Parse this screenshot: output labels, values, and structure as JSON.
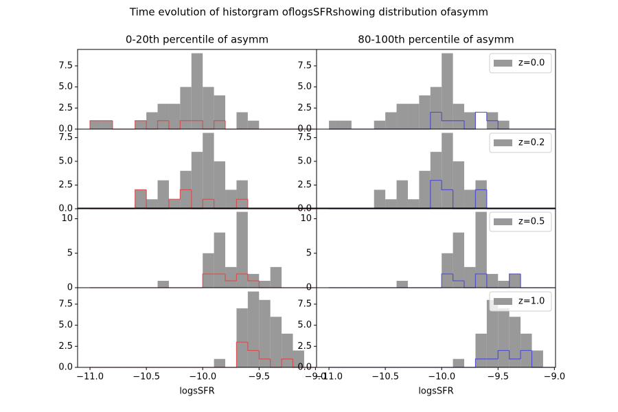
{
  "title": "Time evolution of historgram oflogsSFRshowing distribution ofasymm",
  "chart_data": [
    {
      "type": "histogram",
      "title": "0-20th percentile of asymm",
      "bins": [
        -11,
        -10.9,
        -10.8,
        -10.7,
        -10.6,
        -10.5,
        -10.4,
        -10.3,
        -10.2,
        -10.1,
        -10,
        -9.9,
        -9.8,
        -9.7,
        -9.6,
        -9.5,
        -9.4,
        -9.3,
        -9.2,
        -9.1,
        -9
      ],
      "xlim": [
        -11.11,
        -8.99
      ],
      "ylim": [
        0,
        9.45
      ],
      "yticks": [
        {
          "value": 0,
          "label": "0.0"
        },
        {
          "value": 2.5,
          "label": "2.5"
        },
        {
          "value": 5,
          "label": "5.0"
        },
        {
          "value": 7.5,
          "label": "7.5"
        }
      ],
      "series": [
        {
          "color": "#999999",
          "histtype": "bar",
          "values": [
            1,
            1,
            0,
            0,
            1,
            2,
            3,
            3,
            5,
            9,
            5,
            4,
            0,
            2,
            1,
            0,
            0,
            0,
            0,
            0
          ]
        },
        {
          "color": "#d94848",
          "histtype": "step",
          "values": [
            1,
            1,
            0,
            0,
            1,
            0,
            1,
            0,
            1,
            1,
            0,
            1,
            0,
            0,
            0,
            0,
            0,
            0,
            0,
            0
          ]
        }
      ]
    },
    {
      "type": "histogram",
      "title": "80-100th percentile of asymm",
      "bins": [
        -11,
        -10.9,
        -10.8,
        -10.7,
        -10.6,
        -10.5,
        -10.4,
        -10.3,
        -10.2,
        -10.1,
        -10,
        -9.9,
        -9.8,
        -9.7,
        -9.6,
        -9.5,
        -9.4,
        -9.3,
        -9.2,
        -9.1,
        -9
      ],
      "xlim": [
        -11.11,
        -8.99
      ],
      "ylim": [
        0,
        9.45
      ],
      "legend": "upper right",
      "yticks": [
        {
          "value": 0,
          "label": "0.0"
        },
        {
          "value": 2.5,
          "label": "2.5"
        },
        {
          "value": 5,
          "label": "5.0"
        },
        {
          "value": 7.5,
          "label": "7.5"
        }
      ],
      "series": [
        {
          "name": "z=0.0",
          "color": "#999999",
          "histtype": "bar",
          "values": [
            1,
            1,
            0,
            0,
            1,
            2,
            3,
            3,
            4,
            5,
            9,
            3,
            2,
            0,
            2,
            1,
            0,
            0,
            0,
            0
          ]
        },
        {
          "color": "#4848d0",
          "histtype": "step",
          "values": [
            0,
            0,
            0,
            0,
            0,
            0,
            0,
            0,
            0,
            2,
            1,
            1,
            0,
            2,
            1,
            0,
            0,
            0,
            0,
            0
          ]
        }
      ]
    },
    {
      "type": "histogram",
      "bins": [
        -11,
        -10.9,
        -10.8,
        -10.7,
        -10.6,
        -10.5,
        -10.4,
        -10.3,
        -10.2,
        -10.1,
        -10,
        -9.9,
        -9.8,
        -9.7,
        -9.6,
        -9.5,
        -9.4,
        -9.3,
        -9.2,
        -9.1,
        -9
      ],
      "xlim": [
        -11.11,
        -8.99
      ],
      "ylim": [
        0,
        8.4
      ],
      "yticks": [
        {
          "value": 0,
          "label": "0.0"
        },
        {
          "value": 2.5,
          "label": "2.5"
        },
        {
          "value": 5,
          "label": "5.0"
        },
        {
          "value": 7.5,
          "label": "7.5"
        }
      ],
      "series": [
        {
          "color": "#999999",
          "histtype": "bar",
          "values": [
            0,
            0,
            0,
            0,
            2,
            1,
            3,
            1,
            4,
            6,
            8,
            5,
            2,
            3,
            0,
            0,
            0,
            0,
            0,
            0
          ]
        },
        {
          "color": "#d94848",
          "histtype": "step",
          "values": [
            0,
            0,
            0,
            0,
            2,
            0,
            0,
            1,
            2,
            0,
            1,
            0,
            0,
            1,
            0,
            0,
            0,
            0,
            0,
            0
          ]
        }
      ]
    },
    {
      "type": "histogram",
      "bins": [
        -11,
        -10.9,
        -10.8,
        -10.7,
        -10.6,
        -10.5,
        -10.4,
        -10.3,
        -10.2,
        -10.1,
        -10,
        -9.9,
        -9.8,
        -9.7,
        -9.6,
        -9.5,
        -9.4,
        -9.3,
        -9.2,
        -9.1,
        -9
      ],
      "xlim": [
        -11.11,
        -8.99
      ],
      "ylim": [
        0,
        8.4
      ],
      "legend": "upper right",
      "yticks": [
        {
          "value": 0,
          "label": "0.0"
        },
        {
          "value": 2.5,
          "label": "2.5"
        },
        {
          "value": 5,
          "label": "5.0"
        },
        {
          "value": 7.5,
          "label": "7.5"
        }
      ],
      "series": [
        {
          "name": "z=0.2",
          "color": "#999999",
          "histtype": "bar",
          "values": [
            0,
            0,
            0,
            0,
            2,
            1,
            3,
            1,
            4,
            6,
            8,
            5,
            2,
            3,
            0,
            0,
            0,
            0,
            0,
            0
          ]
        },
        {
          "color": "#4848d0",
          "histtype": "step",
          "values": [
            0,
            0,
            0,
            0,
            0,
            0,
            0,
            0,
            0,
            3,
            2,
            0,
            0,
            2,
            0,
            0,
            0,
            0,
            0,
            0
          ]
        }
      ]
    },
    {
      "type": "histogram",
      "bins": [
        -11,
        -10.9,
        -10.8,
        -10.7,
        -10.6,
        -10.5,
        -10.4,
        -10.3,
        -10.2,
        -10.1,
        -10,
        -9.9,
        -9.8,
        -9.7,
        -9.6,
        -9.5,
        -9.4,
        -9.3,
        -9.2,
        -9.1,
        -9
      ],
      "xlim": [
        -11.11,
        -8.99
      ],
      "ylim": [
        0,
        11.55
      ],
      "yticks": [
        0,
        5,
        10
      ],
      "series": [
        {
          "color": "#999999",
          "histtype": "bar",
          "values": [
            0,
            0,
            0,
            0,
            0,
            0,
            1,
            0,
            0,
            0,
            5,
            8,
            3,
            11,
            2,
            1,
            3,
            0,
            0,
            0
          ]
        },
        {
          "color": "#d94848",
          "histtype": "step",
          "values": [
            0,
            0,
            0,
            0,
            0,
            0,
            0,
            0,
            0,
            0,
            2,
            2,
            1,
            2,
            1,
            0,
            0,
            0,
            0,
            0
          ]
        }
      ]
    },
    {
      "type": "histogram",
      "bins": [
        -11,
        -10.9,
        -10.8,
        -10.7,
        -10.6,
        -10.5,
        -10.4,
        -10.3,
        -10.2,
        -10.1,
        -10,
        -9.9,
        -9.8,
        -9.7,
        -9.6,
        -9.5,
        -9.4,
        -9.3,
        -9.2,
        -9.1,
        -9
      ],
      "xlim": [
        -11.11,
        -8.99
      ],
      "ylim": [
        0,
        11.55
      ],
      "legend": "upper right",
      "yticks": [
        0,
        5,
        10
      ],
      "series": [
        {
          "name": "z=0.5",
          "color": "#999999",
          "histtype": "bar",
          "values": [
            0,
            0,
            0,
            0,
            0,
            0,
            1,
            0,
            0,
            0,
            5,
            8,
            3,
            11,
            2,
            1,
            2,
            0,
            0,
            0
          ]
        },
        {
          "color": "#4848d0",
          "histtype": "step",
          "values": [
            0,
            0,
            0,
            0,
            0,
            0,
            0,
            0,
            0,
            0,
            2,
            1,
            0,
            2,
            0,
            0,
            2,
            0,
            0,
            0
          ]
        }
      ]
    },
    {
      "type": "histogram",
      "xlabel": "logsSFR",
      "bins": [
        -11,
        -10.9,
        -10.8,
        -10.7,
        -10.6,
        -10.5,
        -10.4,
        -10.3,
        -10.2,
        -10.1,
        -10,
        -9.9,
        -9.8,
        -9.7,
        -9.6,
        -9.5,
        -9.4,
        -9.3,
        -9.2,
        -9.1,
        -9
      ],
      "xlim": [
        -11.11,
        -8.99
      ],
      "ylim": [
        0,
        9.45
      ],
      "xticks": [
        {
          "value": -11,
          "label": "−11.0"
        },
        {
          "value": -10.5,
          "label": "−10.5"
        },
        {
          "value": -10,
          "label": "−10.0"
        },
        {
          "value": -9.5,
          "label": "−9.5"
        },
        {
          "value": -9,
          "label": "−9.0"
        }
      ],
      "yticks": [
        {
          "value": 0,
          "label": "0.0"
        },
        {
          "value": 2.5,
          "label": "2.5"
        },
        {
          "value": 5,
          "label": "5.0"
        },
        {
          "value": 7.5,
          "label": "7.5"
        }
      ],
      "series": [
        {
          "color": "#999999",
          "histtype": "bar",
          "values": [
            0,
            0,
            0,
            0,
            0,
            0,
            0,
            0,
            0,
            0,
            0,
            1,
            0,
            7,
            9,
            8,
            6,
            4,
            2,
            0
          ]
        },
        {
          "color": "#d94848",
          "histtype": "step",
          "values": [
            0,
            0,
            0,
            0,
            0,
            0,
            0,
            0,
            0,
            0,
            0,
            0,
            0,
            3,
            2,
            1,
            0,
            1,
            0,
            0
          ]
        }
      ]
    },
    {
      "type": "histogram",
      "xlabel": "logsSFR",
      "bins": [
        -11,
        -10.9,
        -10.8,
        -10.7,
        -10.6,
        -10.5,
        -10.4,
        -10.3,
        -10.2,
        -10.1,
        -10,
        -9.9,
        -9.8,
        -9.7,
        -9.6,
        -9.5,
        -9.4,
        -9.3,
        -9.2,
        -9.1,
        -9
      ],
      "xlim": [
        -11.11,
        -8.99
      ],
      "ylim": [
        0,
        9.45
      ],
      "legend": "upper right",
      "xticks": [
        {
          "value": -11,
          "label": "−11.0"
        },
        {
          "value": -10.5,
          "label": "−10.5"
        },
        {
          "value": -10,
          "label": "−10.0"
        },
        {
          "value": -9.5,
          "label": "−9.5"
        },
        {
          "value": -9,
          "label": "−9.0"
        }
      ],
      "yticks": [
        {
          "value": 0,
          "label": "0.0"
        },
        {
          "value": 2.5,
          "label": "2.5"
        },
        {
          "value": 5,
          "label": "5.0"
        },
        {
          "value": 7.5,
          "label": "7.5"
        }
      ],
      "series": [
        {
          "name": "z=1.0",
          "color": "#999999",
          "histtype": "bar",
          "values": [
            0,
            0,
            0,
            0,
            0,
            0,
            0,
            0,
            0,
            0,
            0,
            1,
            0,
            4,
            8,
            7,
            6,
            4,
            2,
            0
          ]
        },
        {
          "color": "#4848d0",
          "histtype": "step",
          "values": [
            0,
            0,
            0,
            0,
            0,
            0,
            0,
            0,
            0,
            0,
            0,
            0,
            0,
            1,
            1,
            2,
            1,
            2,
            0,
            0
          ]
        }
      ]
    }
  ]
}
